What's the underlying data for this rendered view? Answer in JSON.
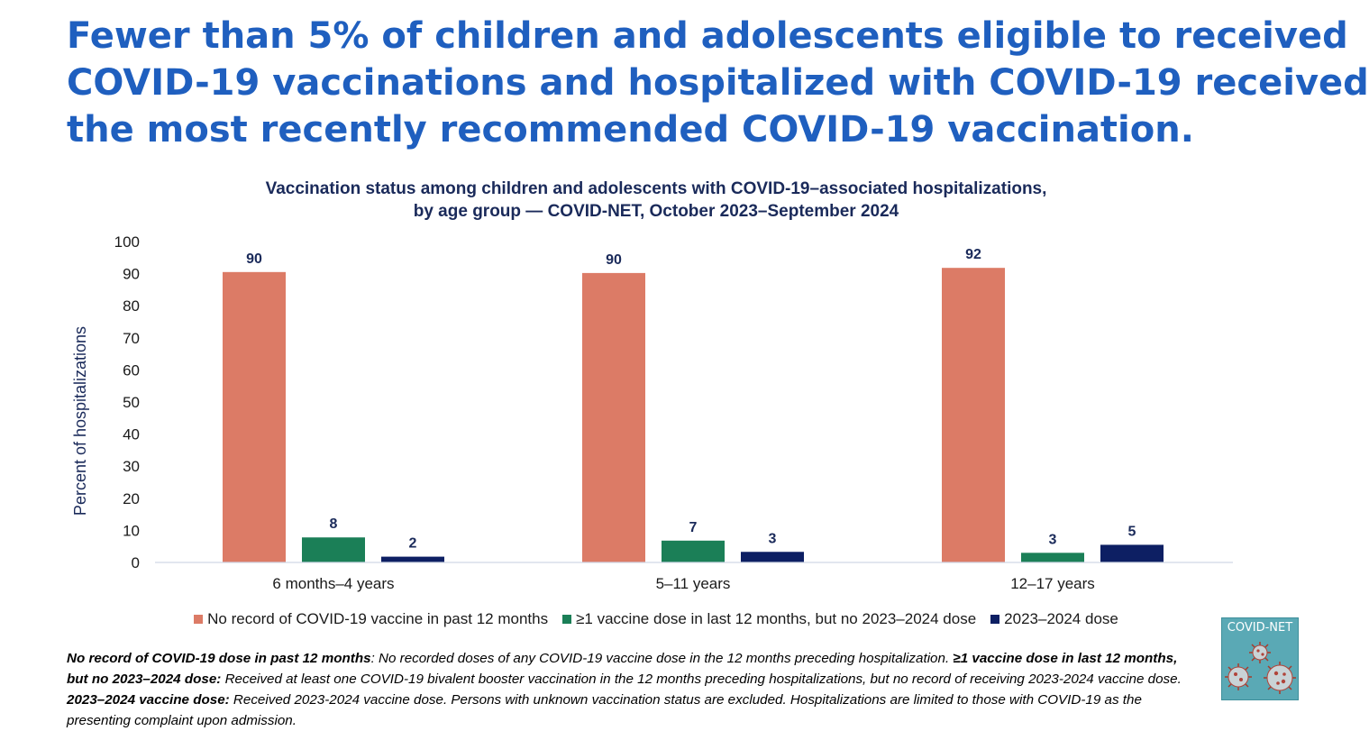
{
  "headline": {
    "line1": "Fewer than 5% of children and adolescents eligible to received",
    "line2": "COVID-19 vaccinations and hospitalized with COVID-19 received",
    "line3": "the most recently recommended COVID-19 vaccination."
  },
  "chart_data": {
    "type": "bar",
    "title_line1": "Vaccination status among children and adolescents with COVID-19–associated hospitalizations,",
    "title_line2": "by age group — COVID-NET, October 2023–September 2024",
    "xlabel": "",
    "ylabel": "Percent of hospitalizations",
    "ylim": [
      0,
      100
    ],
    "yticks": [
      0,
      10,
      20,
      30,
      40,
      50,
      60,
      70,
      80,
      90,
      100
    ],
    "grid": false,
    "legend_position": "bottom",
    "categories": [
      "6 months–4 years",
      "5–11 years",
      "12–17 years"
    ],
    "series": [
      {
        "name": "No record of COVID-19 vaccine in past 12 months",
        "color": "#dc7b66",
        "values": [
          90,
          90,
          92
        ],
        "bar_heights": [
          90.5,
          90.2,
          91.8
        ]
      },
      {
        "name": "≥1 vaccine dose in last 12 months, but no 2023–2024 dose",
        "color": "#1b7f57",
        "values": [
          8,
          7,
          3
        ],
        "bar_heights": [
          7.8,
          6.8,
          3.0
        ]
      },
      {
        "name": "2023–2024 dose",
        "color": "#0d1f63",
        "values": [
          2,
          3,
          5
        ],
        "bar_heights": [
          1.8,
          3.3,
          5.5
        ]
      }
    ]
  },
  "footnote": {
    "term1": "No record of COVID-19 dose in past 12 months",
    "def1": ": No recorded doses of any COVID-19 vaccine dose in the 12 months preceding hospitalization. ",
    "term2": "≥1 vaccine dose in last 12 months, but no 2023–2024 dose:",
    "def2": " Received at least one COVID-19 bivalent booster vaccination in the 12 months preceding hospitalizations, but no record of receiving 2023-2024 vaccine dose. ",
    "term3": "2023–2024 vaccine dose:",
    "def3": " Received 2023-2024 vaccine dose. Persons with unknown vaccination status are excluded. Hospitalizations are limited to those with COVID-19 as the presenting complaint upon admission."
  },
  "logo": {
    "label": "COVID-NET",
    "background": "#5aa9b5"
  }
}
